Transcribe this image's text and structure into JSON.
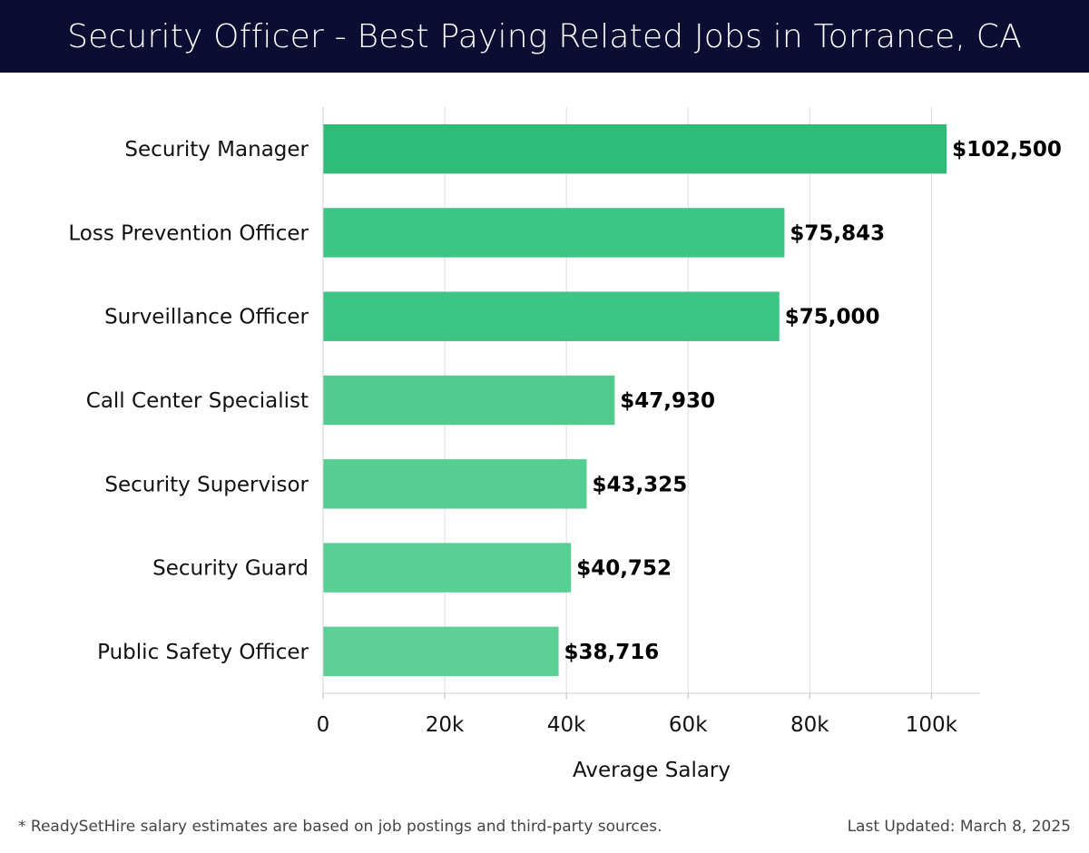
{
  "header": {
    "title": "Security Officer - Best Paying Related Jobs in Torrance, CA"
  },
  "footer": {
    "disclaimer": "* ReadySetHire salary estimates are based on job postings and third-party sources.",
    "last_updated": "Last Updated: March 8, 2025"
  },
  "chart_data": {
    "type": "bar",
    "orientation": "horizontal",
    "title": "Security Officer - Best Paying Related Jobs in Torrance, CA",
    "xlabel": "Average Salary",
    "ylabel": "",
    "categories": [
      "Security Manager",
      "Loss Prevention Officer",
      "Surveillance Officer",
      "Call Center Specialist",
      "Security Supervisor",
      "Security Guard",
      "Public Safety Officer"
    ],
    "values": [
      102500,
      75843,
      75000,
      47930,
      43325,
      40752,
      38716
    ],
    "value_labels": [
      "$102,500",
      "$75,843",
      "$75,000",
      "$47,930",
      "$43,325",
      "$40,752",
      "$38,716"
    ],
    "xlim": [
      0,
      108000
    ],
    "xticks": [
      0,
      20000,
      40000,
      60000,
      80000,
      100000
    ],
    "xtick_labels": [
      "0",
      "20k",
      "40k",
      "60k",
      "80k",
      "100k"
    ],
    "grid": true,
    "bar_colors": [
      "#2dbd78",
      "#3cc583",
      "#3cc583",
      "#52cb8e",
      "#56cd91",
      "#5acf94",
      "#5ccf96"
    ]
  }
}
